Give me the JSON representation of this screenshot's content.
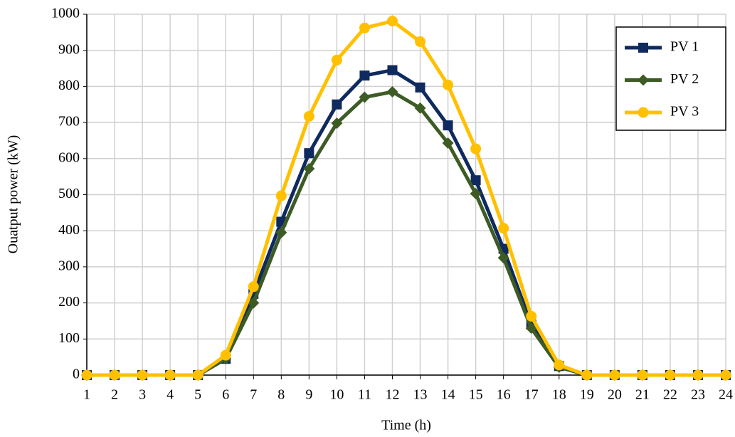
{
  "chart_data": {
    "type": "line",
    "x": [
      1,
      2,
      3,
      4,
      5,
      6,
      7,
      8,
      9,
      10,
      11,
      12,
      13,
      14,
      15,
      16,
      17,
      18,
      19,
      20,
      21,
      22,
      23,
      24
    ],
    "series": [
      {
        "name": "PV 1",
        "color": "#0f2a5e",
        "marker": "square",
        "values": [
          0,
          0,
          0,
          0,
          0,
          45,
          225,
          425,
          615,
          750,
          830,
          845,
          797,
          692,
          540,
          350,
          140,
          25,
          0,
          0,
          0,
          0,
          0,
          0
        ]
      },
      {
        "name": "PV 2",
        "color": "#3d5b25",
        "marker": "diamond",
        "values": [
          0,
          0,
          0,
          0,
          0,
          45,
          200,
          395,
          572,
          698,
          770,
          785,
          740,
          643,
          503,
          325,
          130,
          22,
          0,
          0,
          0,
          0,
          0,
          0
        ]
      },
      {
        "name": "PV 3",
        "color": "#ffc000",
        "marker": "circle",
        "values": [
          0,
          0,
          0,
          0,
          0,
          55,
          245,
          497,
          717,
          873,
          962,
          981,
          924,
          804,
          627,
          407,
          163,
          28,
          0,
          0,
          0,
          0,
          0,
          0
        ]
      }
    ],
    "xlabel": "Time (h)",
    "ylabel": "Ouatput power (kW)",
    "xlim": [
      1,
      24
    ],
    "xticks": [
      1,
      2,
      3,
      4,
      5,
      6,
      7,
      8,
      9,
      10,
      11,
      12,
      13,
      14,
      15,
      16,
      17,
      18,
      19,
      20,
      21,
      22,
      23,
      24
    ],
    "ylim": [
      0,
      1000
    ],
    "yticks": [
      0,
      100,
      200,
      300,
      400,
      500,
      600,
      700,
      800,
      900,
      1000
    ],
    "grid": true,
    "legend": "top-right"
  }
}
